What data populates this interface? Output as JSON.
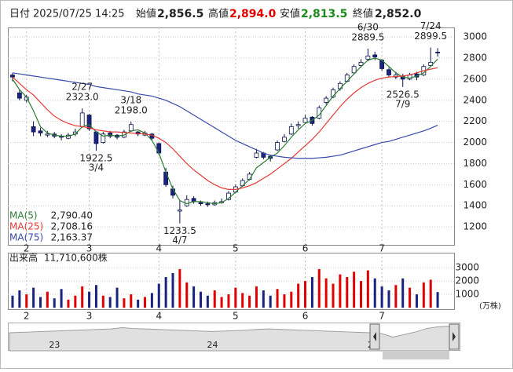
{
  "header": {
    "date_label": "日付",
    "date": "2025/07/25 14:25",
    "open_label": "始値",
    "open": "2,856.5",
    "high_label": "高値",
    "high": "2,894.0",
    "low_label": "安値",
    "low": "2,813.5",
    "close_label": "終値",
    "close": "2,852.0"
  },
  "chart_data": [
    {
      "type": "candlestick",
      "up_color": "#ffffff",
      "down_color": "#1a237e",
      "edge_color": "#0a1450",
      "categories": [
        null,
        null,
        "2",
        null,
        null,
        null,
        null,
        null,
        null,
        null,
        null,
        "3",
        null,
        null,
        null,
        null,
        null,
        null,
        null,
        null,
        null,
        "4",
        null,
        null,
        null,
        null,
        null,
        null,
        null,
        null,
        null,
        null,
        "5",
        null,
        null,
        null,
        null,
        null,
        null,
        null,
        null,
        null,
        "6",
        null,
        null,
        null,
        null,
        null,
        null,
        null,
        null,
        null,
        null,
        "7",
        null,
        null,
        null,
        null,
        null,
        null,
        null,
        null
      ],
      "ohlc": [
        [
          2640,
          2660,
          2580,
          2620
        ],
        [
          2470,
          2500,
          2400,
          2420
        ],
        [
          2400,
          2450,
          2380,
          2430
        ],
        [
          2150,
          2200,
          2060,
          2100
        ],
        [
          2110,
          2140,
          2060,
          2090
        ],
        [
          2070,
          2110,
          2050,
          2080
        ],
        [
          2080,
          2100,
          2040,
          2060
        ],
        [
          2060,
          2080,
          2020,
          2050
        ],
        [
          2040,
          2090,
          2030,
          2070
        ],
        [
          2080,
          2130,
          2060,
          2100
        ],
        [
          2150,
          2323,
          2140,
          2280
        ],
        [
          2260,
          2270,
          2110,
          2130
        ],
        [
          2100,
          2110,
          1922.5,
          1990
        ],
        [
          2000,
          2100,
          1990,
          2080
        ],
        [
          2090,
          2110,
          2040,
          2060
        ],
        [
          2070,
          2080,
          2030,
          2050
        ],
        [
          2050,
          2120,
          2040,
          2100
        ],
        [
          2110,
          2198,
          2100,
          2170
        ],
        [
          2100,
          2110,
          2060,
          2080
        ],
        [
          2070,
          2110,
          2060,
          2090
        ],
        [
          2080,
          2090,
          2020,
          2040
        ],
        [
          1990,
          2000,
          1880,
          1900
        ],
        [
          1720,
          1760,
          1580,
          1600
        ],
        [
          1560,
          1590,
          1470,
          1500
        ],
        [
          1350,
          1450,
          1233.5,
          1360
        ],
        [
          1400,
          1500,
          1390,
          1460
        ],
        [
          1470,
          1490,
          1420,
          1440
        ],
        [
          1430,
          1450,
          1400,
          1420
        ],
        [
          1420,
          1440,
          1390,
          1410
        ],
        [
          1410,
          1450,
          1400,
          1430
        ],
        [
          1430,
          1470,
          1420,
          1440
        ],
        [
          1460,
          1540,
          1450,
          1520
        ],
        [
          1530,
          1600,
          1520,
          1580
        ],
        [
          1590,
          1660,
          1580,
          1640
        ],
        [
          1650,
          1720,
          1640,
          1700
        ],
        [
          1860,
          1940,
          1850,
          1900
        ],
        [
          1900,
          1910,
          1840,
          1860
        ],
        [
          1870,
          1880,
          1820,
          1850
        ],
        [
          1930,
          2020,
          1920,
          2000
        ],
        [
          2010,
          2080,
          2000,
          2050
        ],
        [
          2080,
          2180,
          2070,
          2150
        ],
        [
          2160,
          2200,
          2130,
          2170
        ],
        [
          2190,
          2260,
          2180,
          2230
        ],
        [
          2240,
          2250,
          2160,
          2180
        ],
        [
          2230,
          2350,
          2220,
          2330
        ],
        [
          2380,
          2440,
          2360,
          2420
        ],
        [
          2430,
          2520,
          2420,
          2500
        ],
        [
          2510,
          2580,
          2490,
          2560
        ],
        [
          2580,
          2660,
          2570,
          2640
        ],
        [
          2660,
          2740,
          2650,
          2720
        ],
        [
          2730,
          2790,
          2710,
          2760
        ],
        [
          2790,
          2889.5,
          2770,
          2820
        ],
        [
          2830,
          2860,
          2780,
          2810
        ],
        [
          2780,
          2790,
          2680,
          2700
        ],
        [
          2690,
          2710,
          2620,
          2640
        ],
        [
          2620,
          2670,
          2600,
          2640
        ],
        [
          2630,
          2650,
          2526.5,
          2600
        ],
        [
          2600,
          2660,
          2590,
          2640
        ],
        [
          2650,
          2670,
          2590,
          2620
        ],
        [
          2640,
          2740,
          2630,
          2720
        ],
        [
          2730,
          2899.5,
          2720,
          2760
        ],
        [
          2856.5,
          2894,
          2813.5,
          2852
        ]
      ],
      "series": [
        {
          "name": "MA(5)",
          "label": "2,790.40",
          "color": "#2e7d32",
          "values": [
            2600,
            2500,
            2430,
            2300,
            2150,
            2090,
            2070,
            2060,
            2060,
            2080,
            2150,
            2170,
            2100,
            2060,
            2070,
            2060,
            2070,
            2110,
            2120,
            2090,
            2020,
            1900,
            1720,
            1560,
            1450,
            1420,
            1440,
            1440,
            1430,
            1420,
            1430,
            1470,
            1530,
            1590,
            1650,
            1760,
            1810,
            1860,
            1900,
            1970,
            2050,
            2120,
            2180,
            2210,
            2260,
            2350,
            2440,
            2510,
            2580,
            2650,
            2720,
            2780,
            2800,
            2780,
            2720,
            2660,
            2620,
            2610,
            2630,
            2660,
            2720,
            2790.4
          ]
        },
        {
          "name": "MA(25)",
          "label": "2,708.16",
          "color": "#e53935",
          "values": [
            2620,
            2560,
            2500,
            2450,
            2380,
            2310,
            2250,
            2210,
            2180,
            2160,
            2150,
            2140,
            2120,
            2110,
            2100,
            2100,
            2095,
            2090,
            2085,
            2080,
            2070,
            2040,
            2000,
            1940,
            1870,
            1800,
            1740,
            1690,
            1640,
            1600,
            1570,
            1555,
            1555,
            1570,
            1590,
            1620,
            1660,
            1700,
            1750,
            1800,
            1850,
            1910,
            1970,
            2030,
            2100,
            2180,
            2260,
            2340,
            2410,
            2470,
            2520,
            2560,
            2590,
            2610,
            2620,
            2625,
            2630,
            2640,
            2660,
            2680,
            2695,
            2708.16
          ]
        },
        {
          "name": "MA(75)",
          "label": "2,163.37",
          "color": "#3949ab",
          "values": [
            2660,
            2650,
            2640,
            2630,
            2620,
            2610,
            2600,
            2590,
            2580,
            2570,
            2560,
            2550,
            2530,
            2520,
            2510,
            2500,
            2490,
            2480,
            2460,
            2450,
            2440,
            2420,
            2400,
            2370,
            2340,
            2300,
            2260,
            2220,
            2180,
            2140,
            2100,
            2060,
            2020,
            1990,
            1960,
            1930,
            1900,
            1880,
            1870,
            1860,
            1855,
            1850,
            1850,
            1850,
            1855,
            1860,
            1870,
            1880,
            1900,
            1920,
            1940,
            1960,
            1980,
            2000,
            2010,
            2030,
            2050,
            2070,
            2090,
            2110,
            2135,
            2163.37
          ]
        }
      ],
      "annotations": [
        {
          "date": "2/27",
          "label": "2323.0",
          "value": 2323,
          "index": 10,
          "position": "above"
        },
        {
          "date": "3/4",
          "label": "1922.5",
          "value": 1922.5,
          "index": 12,
          "position": "below"
        },
        {
          "date": "3/18",
          "label": "2198.0",
          "value": 2198,
          "index": 17,
          "position": "above"
        },
        {
          "date": "4/7",
          "label": "1233.5",
          "value": 1233.5,
          "index": 24,
          "position": "below"
        },
        {
          "date": "6/30",
          "label": "2889.5",
          "value": 2889.5,
          "index": 51,
          "position": "above"
        },
        {
          "date": "7/9",
          "label": "2526.5",
          "value": 2526.5,
          "index": 56,
          "position": "below"
        },
        {
          "date": "7/24",
          "label": "2899.5",
          "value": 2899.5,
          "index": 60,
          "position": "above"
        }
      ],
      "ylim": [
        1030,
        3090
      ],
      "yticks": [
        1200,
        1400,
        1600,
        1800,
        2000,
        2200,
        2400,
        2600,
        2800,
        3000
      ],
      "grid": true
    },
    {
      "type": "bar",
      "title": "出来高",
      "latest": "11,710,600株",
      "unit": "(万株)",
      "up_color": "#e00000",
      "down_color": "#1a237e",
      "values": [
        900,
        1300,
        1000,
        1500,
        800,
        1200,
        700,
        1400,
        600,
        900,
        1600,
        1200,
        1700,
        900,
        800,
        1500,
        700,
        1000,
        600,
        800,
        1100,
        1800,
        2300,
        2600,
        2900,
        1900,
        1600,
        1200,
        900,
        1300,
        800,
        1000,
        1500,
        1100,
        900,
        1600,
        1300,
        900,
        1400,
        1000,
        1200,
        1800,
        2000,
        2300,
        2900,
        2200,
        1800,
        2500,
        2300,
        2700,
        2000,
        2800,
        2200,
        1600,
        1300,
        1700,
        2200,
        1500,
        1000,
        1900,
        2100,
        1171.06
      ],
      "ylim": [
        0,
        3600
      ],
      "yticks": [
        1000,
        2000,
        3000
      ]
    },
    {
      "type": "area",
      "color": "#9e9e9e",
      "fill": "#e0e0e0",
      "categories": [
        null,
        null,
        null,
        null,
        "23",
        null,
        null,
        null,
        null,
        null,
        null,
        null,
        null,
        null,
        null,
        null,
        null,
        null,
        "24",
        null,
        null,
        null,
        null,
        null,
        null,
        null,
        null,
        null,
        null,
        null,
        null,
        null,
        "2",
        null,
        null,
        null,
        null,
        null,
        null,
        null
      ],
      "values": [
        2100,
        2150,
        2200,
        2250,
        2300,
        2350,
        2400,
        2450,
        2500,
        2550,
        2700,
        2600,
        2550,
        2500,
        2450,
        2400,
        2350,
        2300,
        2250,
        2300,
        2350,
        2400,
        2500,
        2550,
        2500,
        2450,
        2400,
        2350,
        2300,
        2250,
        2200,
        2150,
        2100,
        2000,
        1600,
        1900,
        2200,
        2600,
        2800,
        2850
      ],
      "ylim": [
        0,
        3200
      ]
    }
  ]
}
